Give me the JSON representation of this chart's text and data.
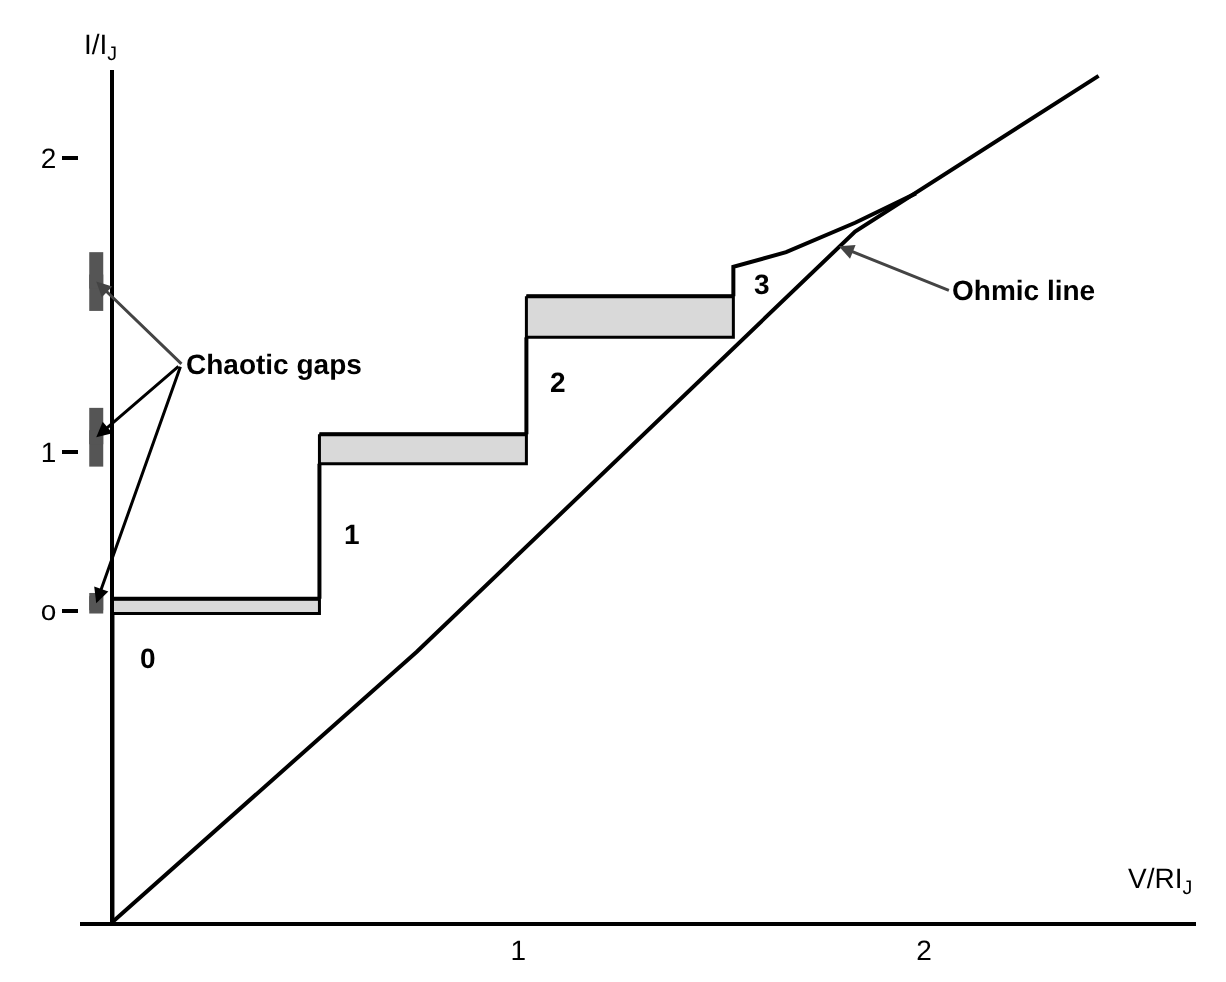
{
  "chart_data": {
    "type": "line",
    "xlabel": "V/RI$_{J}$",
    "ylabel": "I/I$_{J}$",
    "xlim": [
      -0.08,
      2.67
    ],
    "ylim": [
      -0.6,
      2.3
    ],
    "xticks": [
      1,
      2
    ],
    "yticks": [
      {
        "value": 0.46,
        "label": "o"
      },
      1,
      2
    ],
    "grid": false,
    "line_style": "solid",
    "series": [
      {
        "color": "#000000",
        "x": [
          0,
          0,
          null,
          0.51,
          0.51,
          null,
          1.02,
          1.02,
          null,
          1.53,
          1.53,
          1.66,
          1.83,
          1.98
        ],
        "values": [
          -0.6,
          0.45,
          null,
          0.5,
          0.96,
          null,
          1.06,
          1.39,
          null,
          1.53,
          1.63,
          1.68,
          1.78,
          1.88
        ]
      },
      {
        "color": "#000000",
        "x": [
          0,
          0.75,
          1.83,
          2.43
        ],
        "values": [
          -0.6,
          0.32,
          1.75,
          2.28
        ]
      },
      {
        "color": "#000000",
        "x": [
          0,
          0.51
        ],
        "values": [
          0.5,
          0.5
        ],
        "lower": [
          0.45,
          0.45
        ],
        "upper": [
          0.5,
          0.5
        ]
      },
      {
        "color": "#000000",
        "x": [
          0.51,
          1.02
        ],
        "values": [
          1.06,
          1.06
        ],
        "lower": [
          0.96,
          0.96
        ],
        "upper": [
          1.06,
          1.06
        ]
      },
      {
        "color": "#000000",
        "x": [
          1.02,
          1.53
        ],
        "values": [
          1.53,
          1.53
        ],
        "lower": [
          1.39,
          1.39
        ],
        "upper": [
          1.53,
          1.53
        ]
      },
      {
        "type": "scatter",
        "color": "#555555",
        "x": [
          -0.04,
          -0.04,
          -0.04
        ],
        "values": [
          1.58,
          1.05,
          0.485
        ],
        "errors": [
          [
            1.48,
            1.68
          ],
          [
            0.95,
            1.15
          ],
          [
            0.45,
            0.52
          ]
        ]
      }
    ],
    "annotations": [
      {
        "text": "Chaotic gaps",
        "x": -0.04,
        "y": 1.58
      },
      {
        "text": "Ohmic line",
        "x": 1.79,
        "y": 1.7
      },
      "0",
      "1",
      "2",
      "3"
    ]
  }
}
